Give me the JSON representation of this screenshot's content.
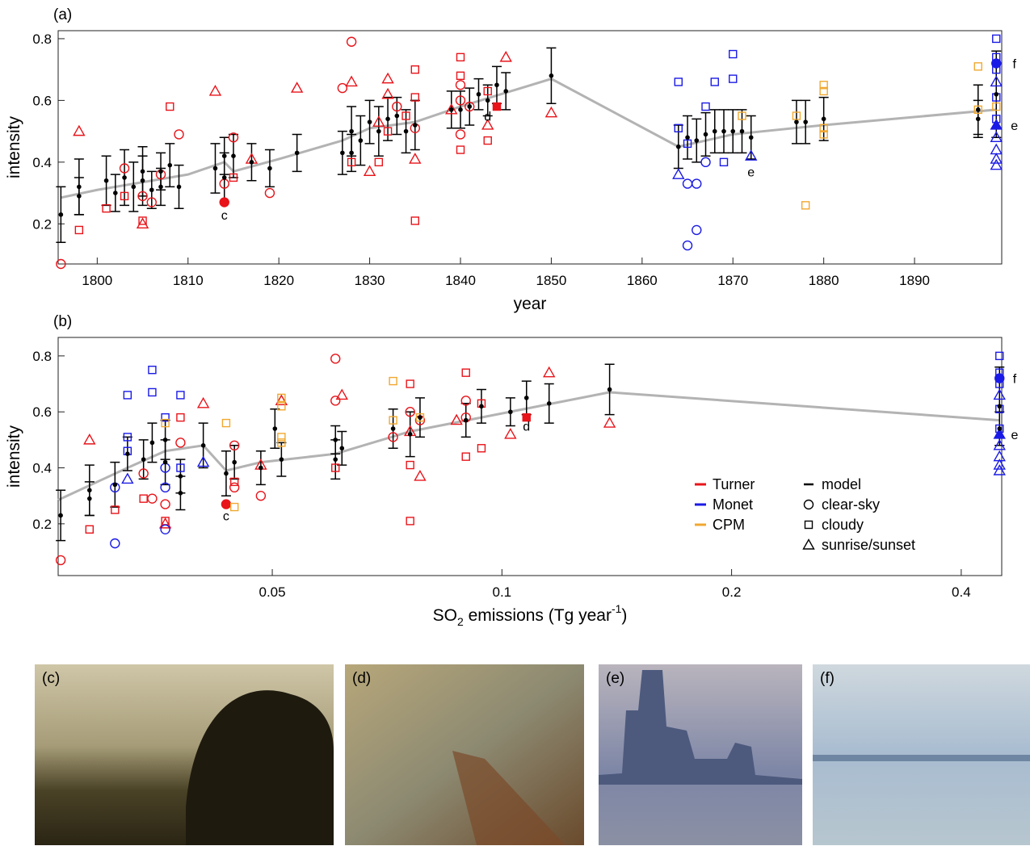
{
  "chart_data": [
    {
      "type": "scatter",
      "label": "(a)",
      "xlabel": "year",
      "ylabel": "intensity",
      "xlim": [
        1795.7,
        1899.6
      ],
      "xticks": [
        1800,
        1810,
        1820,
        1830,
        1840,
        1850,
        1860,
        1870,
        1880,
        1890
      ],
      "ylim": [
        0.07,
        0.826
      ],
      "yticks": [
        0.2,
        0.4,
        0.6,
        0.8
      ],
      "trend": {
        "color": "#b3b3b3",
        "x": [
          1796,
          1800,
          1810,
          1814,
          1815,
          1820,
          1827,
          1830,
          1835,
          1840,
          1850,
          1864,
          1870,
          1880,
          1899
        ],
        "values": [
          0.285,
          0.31,
          0.36,
          0.4,
          0.37,
          0.41,
          0.47,
          0.51,
          0.53,
          0.58,
          0.67,
          0.45,
          0.49,
          0.52,
          0.57
        ]
      },
      "model": {
        "color": "#000000",
        "x": [
          1796,
          1798,
          1798,
          1801,
          1802,
          1803,
          1804,
          1805,
          1805,
          1806,
          1807,
          1807,
          1808,
          1809,
          1813,
          1814,
          1814,
          1815,
          1817,
          1819,
          1822,
          1827,
          1828,
          1828,
          1829,
          1830,
          1831,
          1832,
          1833,
          1834,
          1835,
          1839,
          1840,
          1841,
          1842,
          1843,
          1844,
          1845,
          1850,
          1864,
          1865,
          1866,
          1867,
          1868,
          1869,
          1870,
          1871,
          1872,
          1877,
          1878,
          1880,
          1897,
          1897,
          1899
        ],
        "values": [
          0.23,
          0.29,
          0.32,
          0.34,
          0.3,
          0.35,
          0.32,
          0.34,
          0.37,
          0.31,
          0.32,
          0.37,
          0.39,
          0.32,
          0.38,
          0.35,
          0.42,
          0.42,
          0.4,
          0.38,
          0.43,
          0.43,
          0.5,
          0.43,
          0.47,
          0.53,
          0.5,
          0.54,
          0.55,
          0.5,
          0.52,
          0.57,
          0.57,
          0.58,
          0.62,
          0.6,
          0.65,
          0.63,
          0.68,
          0.45,
          0.48,
          0.47,
          0.49,
          0.5,
          0.5,
          0.5,
          0.5,
          0.48,
          0.53,
          0.53,
          0.54,
          0.54,
          0.57,
          0.62
        ],
        "errors": [
          0.09,
          0.06,
          0.09,
          0.08,
          0.06,
          0.09,
          0.08,
          0.08,
          0.08,
          0.06,
          0.06,
          0.06,
          0.07,
          0.07,
          0.08,
          0.08,
          0.06,
          0.07,
          0.06,
          0.06,
          0.06,
          0.07,
          0.08,
          0.06,
          0.08,
          0.07,
          0.08,
          0.07,
          0.06,
          0.07,
          0.08,
          0.06,
          0.06,
          0.06,
          0.05,
          0.05,
          0.06,
          0.06,
          0.09,
          0.07,
          0.07,
          0.07,
          0.07,
          0.07,
          0.07,
          0.07,
          0.07,
          0.07,
          0.07,
          0.07,
          0.07,
          0.06,
          0.08,
          0.14
        ]
      },
      "series": [
        {
          "name": "Turner",
          "color": "#e8141a",
          "groups": [
            {
              "marker": "circle",
              "filled": false,
              "x": [
                1796,
                1803,
                1805,
                1806,
                1807,
                1809,
                1814,
                1815,
                1819,
                1827,
                1828,
                1833,
                1835,
                1840,
                1840,
                1840,
                1841
              ],
              "values": [
                0.07,
                0.38,
                0.29,
                0.27,
                0.36,
                0.49,
                0.33,
                0.48,
                0.3,
                0.64,
                0.79,
                0.58,
                0.51,
                0.65,
                0.6,
                0.49,
                0.58
              ]
            },
            {
              "marker": "square",
              "filled": false,
              "x": [
                1798,
                1801,
                1803,
                1805,
                1808,
                1815,
                1828,
                1831,
                1832,
                1834,
                1835,
                1835,
                1835,
                1840,
                1840,
                1840,
                1843,
                1843
              ],
              "values": [
                0.18,
                0.25,
                0.29,
                0.21,
                0.58,
                0.35,
                0.4,
                0.4,
                0.5,
                0.55,
                0.7,
                0.61,
                0.21,
                0.74,
                0.68,
                0.44,
                0.47,
                0.63
              ]
            },
            {
              "marker": "triangle",
              "filled": false,
              "x": [
                1798,
                1805,
                1813,
                1817,
                1822,
                1828,
                1830,
                1831,
                1832,
                1832,
                1835,
                1839,
                1843,
                1845,
                1850
              ],
              "values": [
                0.5,
                0.2,
                0.63,
                0.41,
                0.64,
                0.66,
                0.37,
                0.53,
                0.67,
                0.62,
                0.41,
                0.57,
                0.52,
                0.74,
                0.56
              ]
            },
            {
              "marker": "circle",
              "filled": true,
              "x": [
                1814
              ],
              "values": [
                0.27
              ]
            },
            {
              "marker": "square",
              "filled": true,
              "x": [
                1844
              ],
              "values": [
                0.58
              ]
            }
          ]
        },
        {
          "name": "Monet",
          "color": "#1a1ae6",
          "groups": [
            {
              "marker": "circle",
              "filled": false,
              "x": [
                1865,
                1865,
                1866,
                1866,
                1867
              ],
              "values": [
                0.33,
                0.13,
                0.18,
                0.33,
                0.4
              ]
            },
            {
              "marker": "square",
              "filled": false,
              "x": [
                1864,
                1864,
                1865,
                1867,
                1868,
                1869,
                1870,
                1870,
                1899,
                1899,
                1899,
                1899,
                1899
              ],
              "values": [
                0.66,
                0.51,
                0.46,
                0.58,
                0.66,
                0.4,
                0.75,
                0.67,
                0.8,
                0.74,
                0.7,
                0.61,
                0.54
              ]
            },
            {
              "marker": "triangle",
              "filled": false,
              "x": [
                1864,
                1872,
                1899,
                1899,
                1899,
                1899,
                1899
              ],
              "values": [
                0.36,
                0.42,
                0.66,
                0.48,
                0.44,
                0.41,
                0.39
              ]
            },
            {
              "marker": "triangle",
              "filled": true,
              "x": [
                1899
              ],
              "values": [
                0.52
              ]
            },
            {
              "marker": "circle",
              "filled": true,
              "x": [
                1899
              ],
              "values": [
                0.72
              ]
            }
          ]
        },
        {
          "name": "CPM",
          "color": "#f0a830",
          "groups": [
            {
              "marker": "square",
              "filled": false,
              "x": [
                1871,
                1877,
                1878,
                1880,
                1880,
                1880,
                1880,
                1897,
                1897,
                1899
              ],
              "values": [
                0.55,
                0.55,
                0.26,
                0.65,
                0.63,
                0.51,
                0.49,
                0.71,
                0.57,
                0.58
              ]
            }
          ]
        }
      ],
      "annotations": [
        {
          "text": "c",
          "x": 1814,
          "y": 0.23
        },
        {
          "text": "d",
          "x": 1843,
          "y": 0.55
        },
        {
          "text": "e",
          "x": 1872,
          "y": 0.37
        },
        {
          "text": "f",
          "x": 1901,
          "y": 0.72
        },
        {
          "text": "e",
          "x": 1901,
          "y": 0.52
        }
      ]
    },
    {
      "type": "scatter",
      "label": "(b)",
      "xlabel": [
        "SO",
        "2",
        " emissions (Tg year",
        "-1",
        ")"
      ],
      "ylabel": "intensity",
      "xscale": "log",
      "xlim": [
        0.0262,
        0.452
      ],
      "xticks": [
        0.05,
        0.1,
        0.2,
        0.4
      ],
      "ylim": [
        0.015,
        0.866
      ],
      "yticks": [
        0.2,
        0.4,
        0.6,
        0.8
      ],
      "legend": "lower right",
      "marker_legend": [
        {
          "name": "model",
          "marker": "dash"
        },
        {
          "name": "clear-sky",
          "marker": "circle"
        },
        {
          "name": "cloudy",
          "marker": "square"
        },
        {
          "name": "sunrise/sunset",
          "marker": "triangle"
        }
      ],
      "trend": {
        "color": "#b3b3b3",
        "x": [
          0.0262,
          0.0323,
          0.0362,
          0.0406,
          0.0435,
          0.0483,
          0.0605,
          0.0758,
          0.094,
          0.1384,
          0.449
        ],
        "values": [
          0.285,
          0.4,
          0.46,
          0.48,
          0.39,
          0.42,
          0.45,
          0.53,
          0.58,
          0.67,
          0.57
        ]
      },
      "model": {
        "color": "#000000",
        "x": [
          0.0264,
          0.0288,
          0.0288,
          0.0311,
          0.0323,
          0.0339,
          0.0348,
          0.0362,
          0.0362,
          0.0379,
          0.0379,
          0.0406,
          0.0435,
          0.0446,
          0.0483,
          0.0504,
          0.0514,
          0.0605,
          0.0605,
          0.0617,
          0.072,
          0.0758,
          0.0781,
          0.0897,
          0.094,
          0.1026,
          0.1077,
          0.1153,
          0.1384,
          0.449,
          0.449
        ],
        "values": [
          0.23,
          0.32,
          0.29,
          0.34,
          0.45,
          0.43,
          0.49,
          0.5,
          0.42,
          0.37,
          0.31,
          0.48,
          0.38,
          0.42,
          0.4,
          0.54,
          0.43,
          0.5,
          0.43,
          0.47,
          0.54,
          0.52,
          0.58,
          0.57,
          0.62,
          0.6,
          0.65,
          0.63,
          0.68,
          0.62,
          0.54
        ],
        "errors": [
          0.09,
          0.09,
          0.06,
          0.08,
          0.06,
          0.07,
          0.07,
          0.07,
          0.08,
          0.06,
          0.06,
          0.08,
          0.08,
          0.06,
          0.06,
          0.07,
          0.06,
          0.05,
          0.07,
          0.06,
          0.07,
          0.08,
          0.07,
          0.06,
          0.06,
          0.05,
          0.06,
          0.07,
          0.09,
          0.14,
          0.06
        ]
      },
      "series": [
        {
          "name": "Turner",
          "color": "#e8141a",
          "groups": [
            {
              "marker": "circle",
              "filled": false,
              "x": [
                0.0264,
                0.0339,
                0.0348,
                0.0362,
                0.0379,
                0.0446,
                0.0446,
                0.0483,
                0.0605,
                0.0605,
                0.072,
                0.0758,
                0.0781,
                0.0897,
                0.0897
              ],
              "values": [
                0.07,
                0.38,
                0.29,
                0.27,
                0.49,
                0.33,
                0.48,
                0.3,
                0.64,
                0.79,
                0.51,
                0.6,
                0.57,
                0.64,
                0.58
              ]
            },
            {
              "marker": "square",
              "filled": false,
              "x": [
                0.0288,
                0.0311,
                0.0339,
                0.0362,
                0.0379,
                0.0446,
                0.0605,
                0.0758,
                0.0758,
                0.0758,
                0.0897,
                0.0897,
                0.094,
                0.094
              ],
              "values": [
                0.18,
                0.25,
                0.29,
                0.21,
                0.58,
                0.35,
                0.4,
                0.7,
                0.41,
                0.21,
                0.74,
                0.44,
                0.47,
                0.63
              ]
            },
            {
              "marker": "triangle",
              "filled": false,
              "x": [
                0.0288,
                0.0362,
                0.0406,
                0.0483,
                0.0514,
                0.0617,
                0.0781,
                0.0758,
                0.0872,
                0.1026,
                0.1153,
                0.1384
              ],
              "values": [
                0.5,
                0.2,
                0.63,
                0.41,
                0.64,
                0.66,
                0.37,
                0.53,
                0.57,
                0.52,
                0.74,
                0.56
              ]
            },
            {
              "marker": "circle",
              "filled": true,
              "x": [
                0.0435
              ],
              "values": [
                0.27
              ]
            },
            {
              "marker": "square",
              "filled": true,
              "x": [
                0.1077
              ],
              "values": [
                0.58
              ]
            }
          ]
        },
        {
          "name": "Monet",
          "color": "#1a1ae6",
          "groups": [
            {
              "marker": "circle",
              "filled": false,
              "x": [
                0.0311,
                0.0311,
                0.0362,
                0.0362,
                0.0362
              ],
              "values": [
                0.33,
                0.13,
                0.18,
                0.33,
                0.4
              ]
            },
            {
              "marker": "square",
              "filled": false,
              "x": [
                0.0323,
                0.0323,
                0.0323,
                0.0348,
                0.0348,
                0.0362,
                0.0379,
                0.0379,
                0.449,
                0.449,
                0.449,
                0.449,
                0.449
              ],
              "values": [
                0.66,
                0.51,
                0.46,
                0.75,
                0.67,
                0.58,
                0.66,
                0.4,
                0.8,
                0.74,
                0.7,
                0.61,
                0.54
              ]
            },
            {
              "marker": "triangle",
              "filled": false,
              "x": [
                0.0323,
                0.0406,
                0.449,
                0.449,
                0.449,
                0.449,
                0.449
              ],
              "values": [
                0.36,
                0.42,
                0.66,
                0.48,
                0.44,
                0.41,
                0.39
              ]
            },
            {
              "marker": "triangle",
              "filled": true,
              "x": [
                0.449
              ],
              "values": [
                0.52
              ]
            },
            {
              "marker": "circle",
              "filled": true,
              "x": [
                0.449
              ],
              "values": [
                0.72
              ]
            }
          ]
        },
        {
          "name": "CPM",
          "color": "#f0a830",
          "groups": [
            {
              "marker": "square",
              "filled": false,
              "x": [
                0.0362,
                0.0435,
                0.0446,
                0.0514,
                0.0514,
                0.0514,
                0.0514,
                0.072,
                0.0781,
                0.072
              ],
              "values": [
                0.56,
                0.56,
                0.26,
                0.65,
                0.62,
                0.51,
                0.49,
                0.71,
                0.58,
                0.57
              ]
            }
          ]
        }
      ],
      "annotations": [
        {
          "text": "c",
          "x": 0.0435,
          "y": 0.23
        },
        {
          "text": "d",
          "x": 0.1077,
          "y": 0.55
        },
        {
          "text": "f",
          "x": 0.47,
          "y": 0.72
        },
        {
          "text": "e",
          "x": 0.47,
          "y": 0.52
        }
      ]
    }
  ],
  "images": [
    {
      "label": "(c)"
    },
    {
      "label": "(d)"
    },
    {
      "label": "(e)"
    },
    {
      "label": "(f)"
    }
  ]
}
